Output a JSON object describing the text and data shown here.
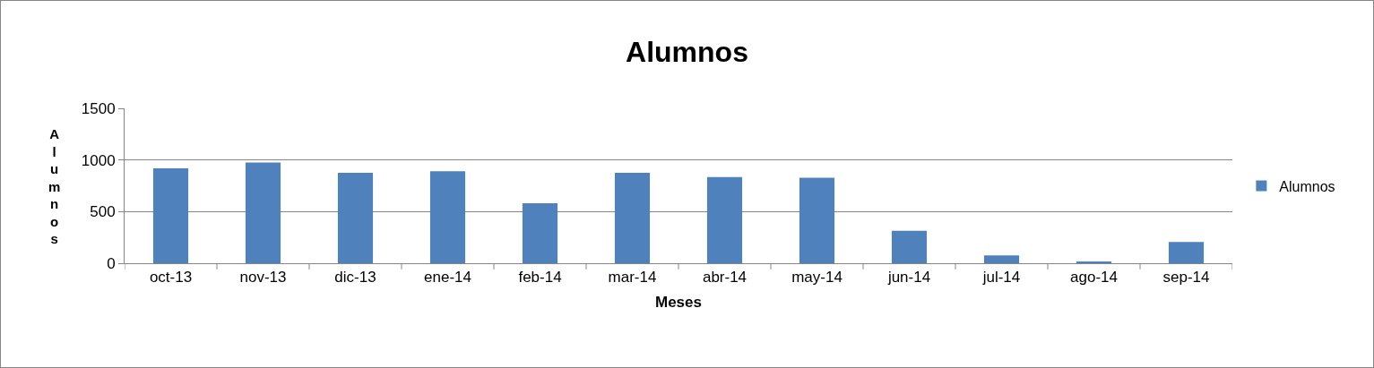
{
  "chart_data": {
    "type": "bar",
    "title": "Alumnos",
    "xlabel": "Meses",
    "ylabel": "Alumnos",
    "categories": [
      "oct-13",
      "nov-13",
      "dic-13",
      "ene-14",
      "feb-14",
      "mar-14",
      "abr-14",
      "may-14",
      "jun-14",
      "jul-14",
      "ago-14",
      "sep-14"
    ],
    "series": [
      {
        "name": "Alumnos",
        "color": "#4f81bd",
        "values": [
          920,
          975,
          875,
          890,
          580,
          875,
          835,
          828,
          315,
          75,
          14,
          205
        ]
      }
    ],
    "ylim": [
      0,
      1500
    ],
    "yticks": [
      0,
      500,
      1000,
      1500
    ],
    "grid": "y",
    "legend": "right"
  }
}
